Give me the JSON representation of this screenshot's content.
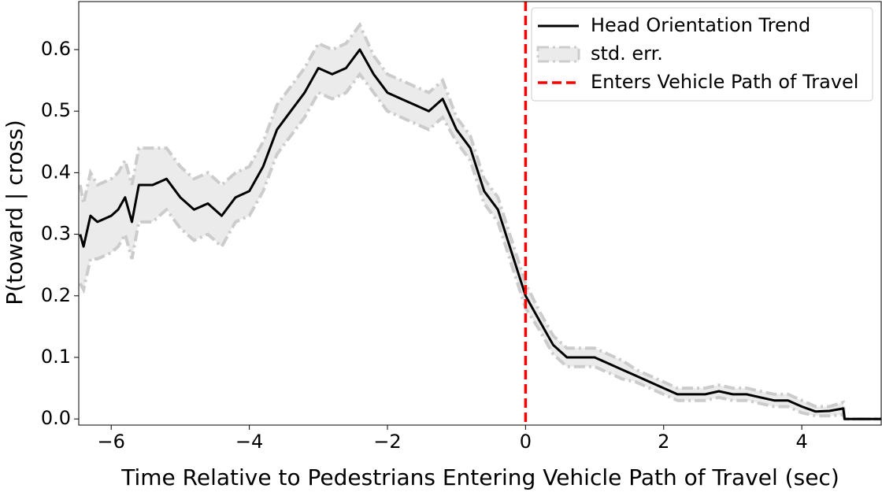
{
  "chart_data": {
    "type": "line",
    "xlabel": "Time Relative to Pedestrians Entering Vehicle Path of Travel (sec)",
    "ylabel": "P(toward | cross)",
    "x": [
      -6.45,
      -6.4,
      -6.3,
      -6.2,
      -6.0,
      -5.9,
      -5.8,
      -5.7,
      -5.6,
      -5.4,
      -5.2,
      -5.0,
      -4.8,
      -4.6,
      -4.4,
      -4.2,
      -4.0,
      -3.8,
      -3.6,
      -3.4,
      -3.2,
      -3.0,
      -2.8,
      -2.6,
      -2.4,
      -2.2,
      -2.0,
      -1.8,
      -1.6,
      -1.4,
      -1.2,
      -1.0,
      -0.8,
      -0.6,
      -0.4,
      -0.2,
      0.0,
      0.2,
      0.4,
      0.6,
      0.8,
      1.0,
      1.2,
      1.4,
      1.6,
      1.8,
      2.0,
      2.2,
      2.4,
      2.6,
      2.8,
      3.0,
      3.2,
      3.4,
      3.6,
      3.8,
      4.0,
      4.2,
      4.4,
      4.6,
      4.62,
      5.15
    ],
    "series": [
      {
        "name": "Head Orientation Trend",
        "color": "#000000",
        "values": [
          0.3,
          0.28,
          0.33,
          0.32,
          0.33,
          0.34,
          0.36,
          0.32,
          0.38,
          0.38,
          0.39,
          0.36,
          0.34,
          0.35,
          0.33,
          0.36,
          0.37,
          0.41,
          0.47,
          0.5,
          0.53,
          0.57,
          0.56,
          0.57,
          0.6,
          0.56,
          0.53,
          0.52,
          0.51,
          0.5,
          0.52,
          0.47,
          0.44,
          0.37,
          0.34,
          0.27,
          0.2,
          0.16,
          0.12,
          0.1,
          0.1,
          0.1,
          0.09,
          0.08,
          0.07,
          0.06,
          0.05,
          0.04,
          0.04,
          0.04,
          0.045,
          0.04,
          0.04,
          0.035,
          0.03,
          0.03,
          0.02,
          0.012,
          0.013,
          0.017,
          0.0,
          0.0
        ]
      }
    ],
    "band": {
      "name": "std. err.",
      "color": "#cccccc",
      "lower": [
        0.22,
        0.21,
        0.26,
        0.26,
        0.27,
        0.28,
        0.3,
        0.26,
        0.32,
        0.32,
        0.34,
        0.31,
        0.29,
        0.3,
        0.28,
        0.32,
        0.33,
        0.37,
        0.43,
        0.46,
        0.49,
        0.53,
        0.52,
        0.53,
        0.56,
        0.53,
        0.5,
        0.49,
        0.48,
        0.47,
        0.49,
        0.45,
        0.42,
        0.35,
        0.32,
        0.25,
        0.18,
        0.145,
        0.105,
        0.085,
        0.085,
        0.085,
        0.075,
        0.065,
        0.06,
        0.05,
        0.04,
        0.03,
        0.03,
        0.03,
        0.035,
        0.03,
        0.03,
        0.025,
        0.02,
        0.02,
        0.01,
        0.005,
        0.005,
        0.007,
        0.0,
        0.0
      ],
      "upper": [
        0.38,
        0.35,
        0.4,
        0.38,
        0.39,
        0.4,
        0.42,
        0.38,
        0.44,
        0.44,
        0.44,
        0.41,
        0.39,
        0.4,
        0.38,
        0.4,
        0.41,
        0.45,
        0.51,
        0.54,
        0.57,
        0.61,
        0.6,
        0.61,
        0.64,
        0.59,
        0.56,
        0.55,
        0.54,
        0.53,
        0.55,
        0.49,
        0.46,
        0.39,
        0.36,
        0.29,
        0.22,
        0.175,
        0.135,
        0.115,
        0.115,
        0.115,
        0.105,
        0.095,
        0.08,
        0.07,
        0.06,
        0.05,
        0.05,
        0.05,
        0.055,
        0.05,
        0.05,
        0.045,
        0.04,
        0.04,
        0.03,
        0.02,
        0.02,
        0.027,
        0.0,
        0.0
      ]
    },
    "vline": {
      "x": 0,
      "name": "Enters Vehicle Path of Travel",
      "color": "#ff0000"
    },
    "xlim": [
      -6.47,
      5.15
    ],
    "ylim": [
      -0.01,
      0.678
    ],
    "xticks": [
      {
        "value": -6,
        "label": "−6"
      },
      {
        "value": -4,
        "label": "−4"
      },
      {
        "value": -2,
        "label": "−2"
      },
      0,
      2,
      4
    ],
    "yticks": [
      {
        "value": 0,
        "label": "0.0"
      },
      0.1,
      0.2,
      0.3,
      0.4,
      0.5,
      0.6
    ],
    "legend": "upper right",
    "grid": false
  }
}
